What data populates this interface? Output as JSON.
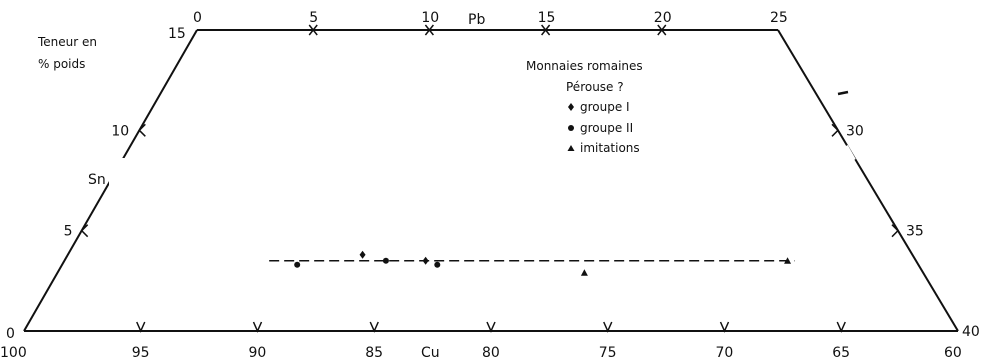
{
  "chart_data": {
    "type": "scatter",
    "diagram": "ternary composition field (Cu–Sn–Pb), truncated trapezoid",
    "y_axis": {
      "label_line1": "Teneur en",
      "label_line2": "% poids",
      "name": "Sn",
      "range": [
        0,
        15
      ],
      "ticks": [
        "0",
        "5",
        "10",
        "15"
      ]
    },
    "top_axis": {
      "name": "Pb",
      "range": [
        0,
        25
      ],
      "ticks": [
        "0",
        "5",
        "10",
        "15",
        "20",
        "25"
      ]
    },
    "bottom_axis": {
      "name": "Cu",
      "range": [
        100,
        60
      ],
      "ticks": [
        "100",
        "95",
        "90",
        "85",
        "80",
        "75",
        "70",
        "65",
        "60"
      ]
    },
    "right_axis": {
      "range": [
        25,
        40
      ],
      "ticks": [
        "30",
        "35",
        "40"
      ]
    },
    "legend": {
      "title_line1": "Monnaies romaines",
      "title_line2": "Pérouse ?",
      "entries": [
        {
          "label": "groupe I",
          "marker": "diamond"
        },
        {
          "label": "groupe II",
          "marker": "circle"
        },
        {
          "label": "imitations",
          "marker": "triangle"
        }
      ]
    },
    "reference_line": {
      "style": "dashed",
      "sn": 3.5,
      "cu_from": 89.5,
      "cu_to": 67
    },
    "series": [
      {
        "legend_label": "groupe I",
        "marker": "diamond",
        "points": [
          {
            "cu": 85.5,
            "sn": 3.8
          },
          {
            "cu": 82.8,
            "sn": 3.5
          }
        ]
      },
      {
        "legend_label": "groupe II",
        "marker": "circle",
        "points": [
          {
            "cu": 88.3,
            "sn": 3.3
          },
          {
            "cu": 84.5,
            "sn": 3.5
          },
          {
            "cu": 82.3,
            "sn": 3.3
          }
        ]
      },
      {
        "legend_label": "imitations",
        "marker": "triangle",
        "points": [
          {
            "cu": 76.0,
            "sn": 2.9
          },
          {
            "cu": 67.3,
            "sn": 3.5
          }
        ]
      }
    ]
  }
}
